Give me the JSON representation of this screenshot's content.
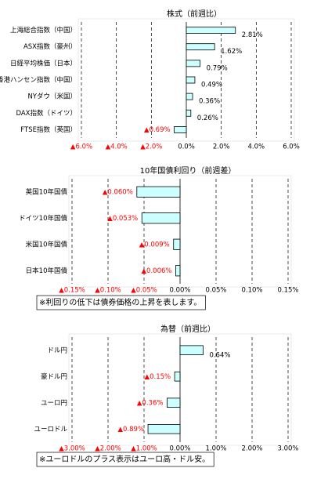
{
  "chart_data": [
    {
      "type": "bar",
      "orientation": "horizontal",
      "title": "株式（前週比）",
      "categories": [
        "上海総合指数（中国）",
        "ASX指数（豪州）",
        "日経平均株価（日本）",
        "香港ハンセン指数（中国）",
        "NYダウ（米国）",
        "DAX指数（ドイツ）",
        "FTSE指数（英国）"
      ],
      "values": [
        2.81,
        1.62,
        0.79,
        0.49,
        0.36,
        0.26,
        -0.69
      ],
      "value_labels": [
        "2.81%",
        "1.62%",
        "0.79%",
        "0.49%",
        "0.36%",
        "0.26%",
        "▲0.69%"
      ],
      "xlim": [
        -6,
        6
      ],
      "xticks": [
        {
          "value": -6,
          "label": "▲6.0%"
        },
        {
          "value": -4,
          "label": "▲4.0%"
        },
        {
          "value": -2,
          "label": "▲2.0%"
        },
        {
          "value": 0,
          "label": "0.0%"
        },
        {
          "value": 2,
          "label": "2.0%"
        },
        {
          "value": 4,
          "label": "4.0%"
        },
        {
          "value": 6,
          "label": "6.0%"
        }
      ],
      "color": "#ccffff",
      "negative_label_color": "#ff0000",
      "grid": true
    },
    {
      "type": "bar",
      "orientation": "horizontal",
      "title": "10年国債利回り（前週差）",
      "categories": [
        "英国10年国債",
        "ドイツ10年国債",
        "米国10年国債",
        "日本10年国債"
      ],
      "values": [
        -0.06,
        -0.053,
        -0.009,
        -0.006
      ],
      "value_labels": [
        "▲0.060%",
        "▲0.053%",
        "▲0.009%",
        "▲0.006%"
      ],
      "xlim": [
        -0.15,
        0.15
      ],
      "xticks": [
        {
          "value": -0.15,
          "label": "▲0.15%"
        },
        {
          "value": -0.1,
          "label": "▲0.10%"
        },
        {
          "value": -0.05,
          "label": "▲0.05%"
        },
        {
          "value": 0,
          "label": "0.00%"
        },
        {
          "value": 0.05,
          "label": "0.05%"
        },
        {
          "value": 0.1,
          "label": "0.10%"
        },
        {
          "value": 0.15,
          "label": "0.15%"
        }
      ],
      "color": "#ccffff",
      "negative_label_color": "#ff0000",
      "grid": true,
      "note": "※利回りの低下は債券価格の上昇を表します。"
    },
    {
      "type": "bar",
      "orientation": "horizontal",
      "title": "為替（前週比）",
      "categories": [
        "ドル円",
        "豪ドル円",
        "ユーロ円",
        "ユーロドル"
      ],
      "values": [
        0.64,
        -0.15,
        -0.36,
        -0.89
      ],
      "value_labels": [
        "0.64%",
        "▲0.15%",
        "▲0.36%",
        "▲0.89%"
      ],
      "xlim": [
        -3,
        3
      ],
      "xticks": [
        {
          "value": -3,
          "label": "▲3.00%"
        },
        {
          "value": -2,
          "label": "▲2.00%"
        },
        {
          "value": -1,
          "label": "▲1.00%"
        },
        {
          "value": 0,
          "label": "0.00%"
        },
        {
          "value": 1,
          "label": "1.00%"
        },
        {
          "value": 2,
          "label": "2.00%"
        },
        {
          "value": 3,
          "label": "3.00%"
        }
      ],
      "color": "#ccffff",
      "negative_label_color": "#ff0000",
      "grid": true,
      "note": "※ユーロドルのプラス表示はユーロ高・ドル安。"
    }
  ]
}
